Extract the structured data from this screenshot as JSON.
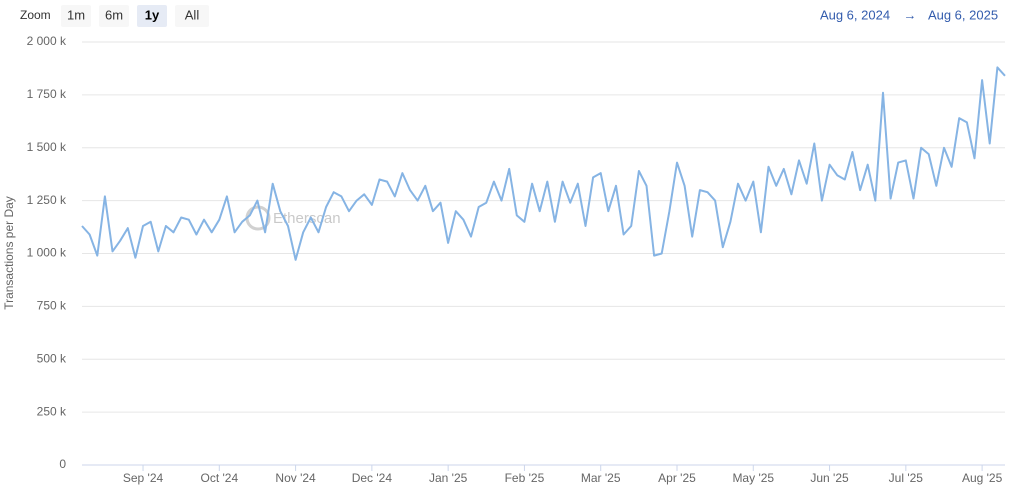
{
  "chart_data": {
    "type": "line",
    "zoom_label": "Zoom",
    "zoom_buttons": [
      "1m",
      "6m",
      "1y",
      "All"
    ],
    "zoom_selected": "1y",
    "range_from": "Aug 6, 2024",
    "range_separator": "→",
    "range_to": "Aug 6, 2025",
    "watermark": "Etherscan",
    "y_label": "Transactions per Day",
    "ylim": [
      0,
      2000000
    ],
    "yticks": [
      {
        "value": 0,
        "label": "0"
      },
      {
        "value": 250000,
        "label": "250 k"
      },
      {
        "value": 500000,
        "label": "500 k"
      },
      {
        "value": 750000,
        "label": "750 k"
      },
      {
        "value": 1000000,
        "label": "1 000 k"
      },
      {
        "value": 1250000,
        "label": "1 250 k"
      },
      {
        "value": 1500000,
        "label": "1 500 k"
      },
      {
        "value": 1750000,
        "label": "1 750 k"
      },
      {
        "value": 2000000,
        "label": "2 000 k"
      }
    ],
    "grid": true,
    "color": "#86b4e4",
    "categories": [
      null,
      null,
      null,
      null,
      null,
      null,
      null,
      null,
      "Sep '24",
      null,
      null,
      null,
      null,
      null,
      null,
      null,
      null,
      null,
      "Oct '24",
      null,
      null,
      null,
      null,
      null,
      null,
      null,
      null,
      null,
      "Nov '24",
      null,
      null,
      null,
      null,
      null,
      null,
      null,
      null,
      null,
      "Dec '24",
      null,
      null,
      null,
      null,
      null,
      null,
      null,
      null,
      null,
      "Jan '25",
      null,
      null,
      null,
      null,
      null,
      null,
      null,
      null,
      null,
      "Feb '25",
      null,
      null,
      null,
      null,
      null,
      null,
      null,
      null,
      null,
      "Mar '25",
      null,
      null,
      null,
      null,
      null,
      null,
      null,
      null,
      null,
      "Apr '25",
      null,
      null,
      null,
      null,
      null,
      null,
      null,
      null,
      null,
      "May '25",
      null,
      null,
      null,
      null,
      null,
      null,
      null,
      null,
      null,
      "Jun '25",
      null,
      null,
      null,
      null,
      null,
      null,
      null,
      null,
      null,
      "Jul '25",
      null,
      null,
      null,
      null,
      null,
      null,
      null,
      null,
      null,
      "Aug '25",
      null,
      null,
      null
    ],
    "values": [
      1130000,
      1090000,
      990000,
      1270000,
      1010000,
      1060000,
      1120000,
      980000,
      1130000,
      1150000,
      1010000,
      1130000,
      1100000,
      1170000,
      1160000,
      1090000,
      1160000,
      1100000,
      1160000,
      1270000,
      1100000,
      1150000,
      1180000,
      1250000,
      1100000,
      1330000,
      1200000,
      1130000,
      970000,
      1100000,
      1170000,
      1100000,
      1220000,
      1290000,
      1270000,
      1200000,
      1250000,
      1280000,
      1230000,
      1350000,
      1340000,
      1270000,
      1380000,
      1300000,
      1250000,
      1320000,
      1200000,
      1240000,
      1050000,
      1200000,
      1160000,
      1080000,
      1220000,
      1240000,
      1340000,
      1250000,
      1400000,
      1180000,
      1150000,
      1330000,
      1200000,
      1340000,
      1150000,
      1340000,
      1240000,
      1330000,
      1130000,
      1360000,
      1380000,
      1200000,
      1320000,
      1090000,
      1130000,
      1390000,
      1320000,
      990000,
      1000000,
      1200000,
      1430000,
      1320000,
      1080000,
      1300000,
      1290000,
      1250000,
      1030000,
      1150000,
      1330000,
      1250000,
      1340000,
      1100000,
      1410000,
      1320000,
      1400000,
      1280000,
      1440000,
      1330000,
      1520000,
      1250000,
      1420000,
      1370000,
      1350000,
      1480000,
      1300000,
      1420000,
      1250000,
      1760000,
      1260000,
      1430000,
      1440000,
      1260000,
      1500000,
      1470000,
      1320000,
      1500000,
      1410000,
      1640000,
      1620000,
      1450000,
      1820000,
      1520000,
      1880000,
      1840000
    ]
  }
}
